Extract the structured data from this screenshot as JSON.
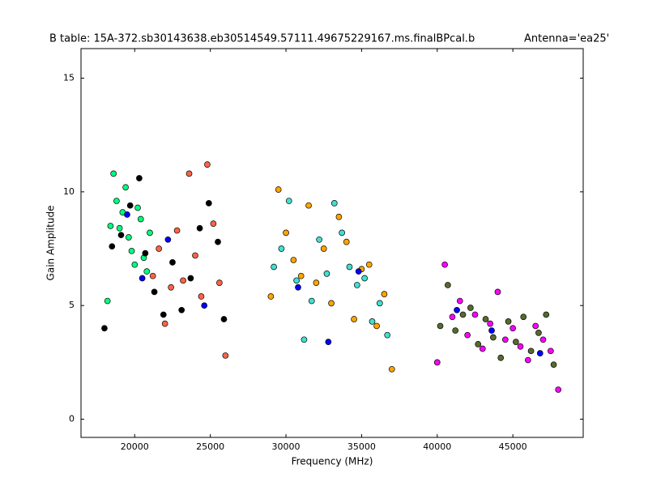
{
  "chart_data": {
    "type": "scatter",
    "title": "B table: 15A-372.sb30143638.eb30514549.57111.49675229167.ms.finalBPcal.b",
    "annotation": "Antenna='ea25'",
    "x_label": "Frequency (MHz)",
    "y_label": "Gain Amplitude",
    "xlim": [
      16450,
      49650
    ],
    "ylim": [
      -0.8,
      16.3
    ],
    "xticks": [
      20000,
      25000,
      30000,
      35000,
      40000,
      45000
    ],
    "yticks": [
      0,
      5,
      10,
      15
    ],
    "grid": false,
    "series": [
      {
        "color": "#00ff7f",
        "x": [
          18200,
          18400,
          18600,
          18800,
          19000,
          19200,
          19400,
          19600,
          19800,
          20000,
          20200,
          20400,
          20600,
          20800,
          21000
        ],
        "values": [
          5.2,
          8.5,
          10.8,
          9.6,
          8.4,
          9.1,
          10.2,
          8.0,
          7.4,
          6.8,
          9.3,
          8.8,
          7.1,
          6.5,
          8.2
        ]
      },
      {
        "color": "#ff6347",
        "x": [
          21200,
          21600,
          22000,
          22400,
          22800,
          23200,
          23600,
          24000,
          24400,
          24800,
          25200,
          25600,
          26000
        ],
        "values": [
          6.3,
          7.5,
          4.2,
          5.8,
          8.3,
          6.1,
          10.8,
          7.2,
          5.4,
          11.2,
          8.6,
          6.0,
          2.8
        ]
      },
      {
        "color": "#000000",
        "x": [
          18000,
          18500,
          19100,
          19700,
          20300,
          20700,
          21300,
          21900,
          22500,
          23100,
          23700,
          24300,
          24900,
          25500,
          25900
        ],
        "values": [
          4.0,
          7.6,
          8.1,
          9.4,
          10.6,
          7.3,
          5.6,
          4.6,
          6.9,
          4.8,
          6.2,
          8.4,
          9.5,
          7.8,
          4.4
        ]
      },
      {
        "color": "#ffa500",
        "x": [
          29000,
          29500,
          30000,
          30500,
          31000,
          31500,
          32000,
          32500,
          33000,
          33500,
          34000,
          34500,
          35000,
          35500,
          36000,
          36500,
          37000
        ],
        "values": [
          5.4,
          10.1,
          8.2,
          7.0,
          6.3,
          9.4,
          6.0,
          7.5,
          5.1,
          8.9,
          7.8,
          4.4,
          6.6,
          6.8,
          4.1,
          5.5,
          2.2
        ]
      },
      {
        "color": "#40e0d0",
        "x": [
          29200,
          29700,
          30200,
          30700,
          31200,
          31700,
          32200,
          32700,
          33200,
          33700,
          34200,
          34700,
          35200,
          35700,
          36200,
          36700
        ],
        "values": [
          6.7,
          7.5,
          9.6,
          6.1,
          3.5,
          5.2,
          7.9,
          6.4,
          9.5,
          8.2,
          6.7,
          5.9,
          6.2,
          4.3,
          5.1,
          3.7
        ]
      },
      {
        "color": "#ff00ff",
        "x": [
          40000,
          40500,
          41000,
          41500,
          42000,
          42500,
          43000,
          43500,
          44000,
          44500,
          45000,
          45500,
          46000,
          46500,
          47000,
          47500,
          48000
        ],
        "values": [
          2.5,
          6.8,
          4.5,
          5.2,
          3.7,
          4.6,
          3.1,
          4.2,
          5.6,
          3.5,
          4.0,
          3.2,
          2.6,
          4.1,
          3.5,
          3.0,
          1.3
        ]
      },
      {
        "color": "#556b2f",
        "x": [
          40200,
          40700,
          41200,
          41700,
          42200,
          42700,
          43200,
          43700,
          44200,
          44700,
          45200,
          45700,
          46200,
          46700,
          47200,
          47700
        ],
        "values": [
          4.1,
          5.9,
          3.9,
          4.6,
          4.9,
          3.3,
          4.4,
          3.6,
          2.7,
          4.3,
          3.4,
          4.5,
          3.0,
          3.8,
          4.6,
          2.4
        ]
      },
      {
        "color": "#0000ff",
        "x": [
          19500,
          20500,
          22200,
          24600,
          30800,
          32800,
          34800,
          41300,
          43600,
          46800
        ],
        "values": [
          9.0,
          6.2,
          7.9,
          5.0,
          5.8,
          3.4,
          6.5,
          4.8,
          3.9,
          2.9
        ]
      }
    ]
  }
}
